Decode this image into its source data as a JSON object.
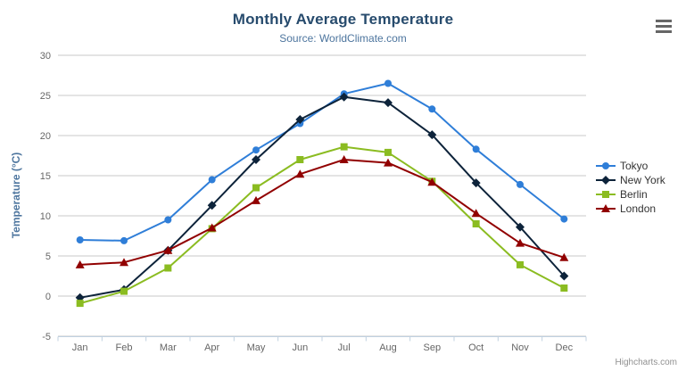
{
  "chart_data": {
    "type": "line",
    "title": "Monthly Average Temperature",
    "subtitle": "Source: WorldClimate.com",
    "categories": [
      "Jan",
      "Feb",
      "Mar",
      "Apr",
      "May",
      "Jun",
      "Jul",
      "Aug",
      "Sep",
      "Oct",
      "Nov",
      "Dec"
    ],
    "xlabel": "",
    "ylabel": "Temperature (°C)",
    "ylim": [
      -5,
      30
    ],
    "ytick_step": 5,
    "grid": true,
    "legend_position": "right",
    "series": [
      {
        "name": "Tokyo",
        "color": "#2f7ed8",
        "marker": "circle",
        "values": [
          7.0,
          6.9,
          9.5,
          14.5,
          18.2,
          21.5,
          25.2,
          26.5,
          23.3,
          18.3,
          13.9,
          9.6
        ]
      },
      {
        "name": "New York",
        "color": "#0d233a",
        "marker": "diamond",
        "values": [
          -0.2,
          0.8,
          5.7,
          11.3,
          17.0,
          22.0,
          24.8,
          24.1,
          20.1,
          14.1,
          8.6,
          2.5
        ]
      },
      {
        "name": "Berlin",
        "color": "#8bbc21",
        "marker": "square",
        "values": [
          -0.9,
          0.6,
          3.5,
          8.4,
          13.5,
          17.0,
          18.6,
          17.9,
          14.3,
          9.0,
          3.9,
          1.0
        ]
      },
      {
        "name": "London",
        "color": "#910000",
        "marker": "triangle",
        "values": [
          3.9,
          4.2,
          5.7,
          8.5,
          11.9,
          15.2,
          17.0,
          16.6,
          14.2,
          10.3,
          6.6,
          4.8
        ]
      }
    ]
  },
  "colors": {
    "title": "#274b6d",
    "subtitle": "#4d759e",
    "axis_label": "#666666",
    "gridline": "#c8c8c8",
    "axis_line": "#c0d0e0",
    "legend_text": "#333333",
    "menu_icon": "#666666",
    "credits": "#909090"
  },
  "icons": {
    "context_menu": "hamburger-icon"
  },
  "credits": {
    "label": "Highcharts.com"
  }
}
